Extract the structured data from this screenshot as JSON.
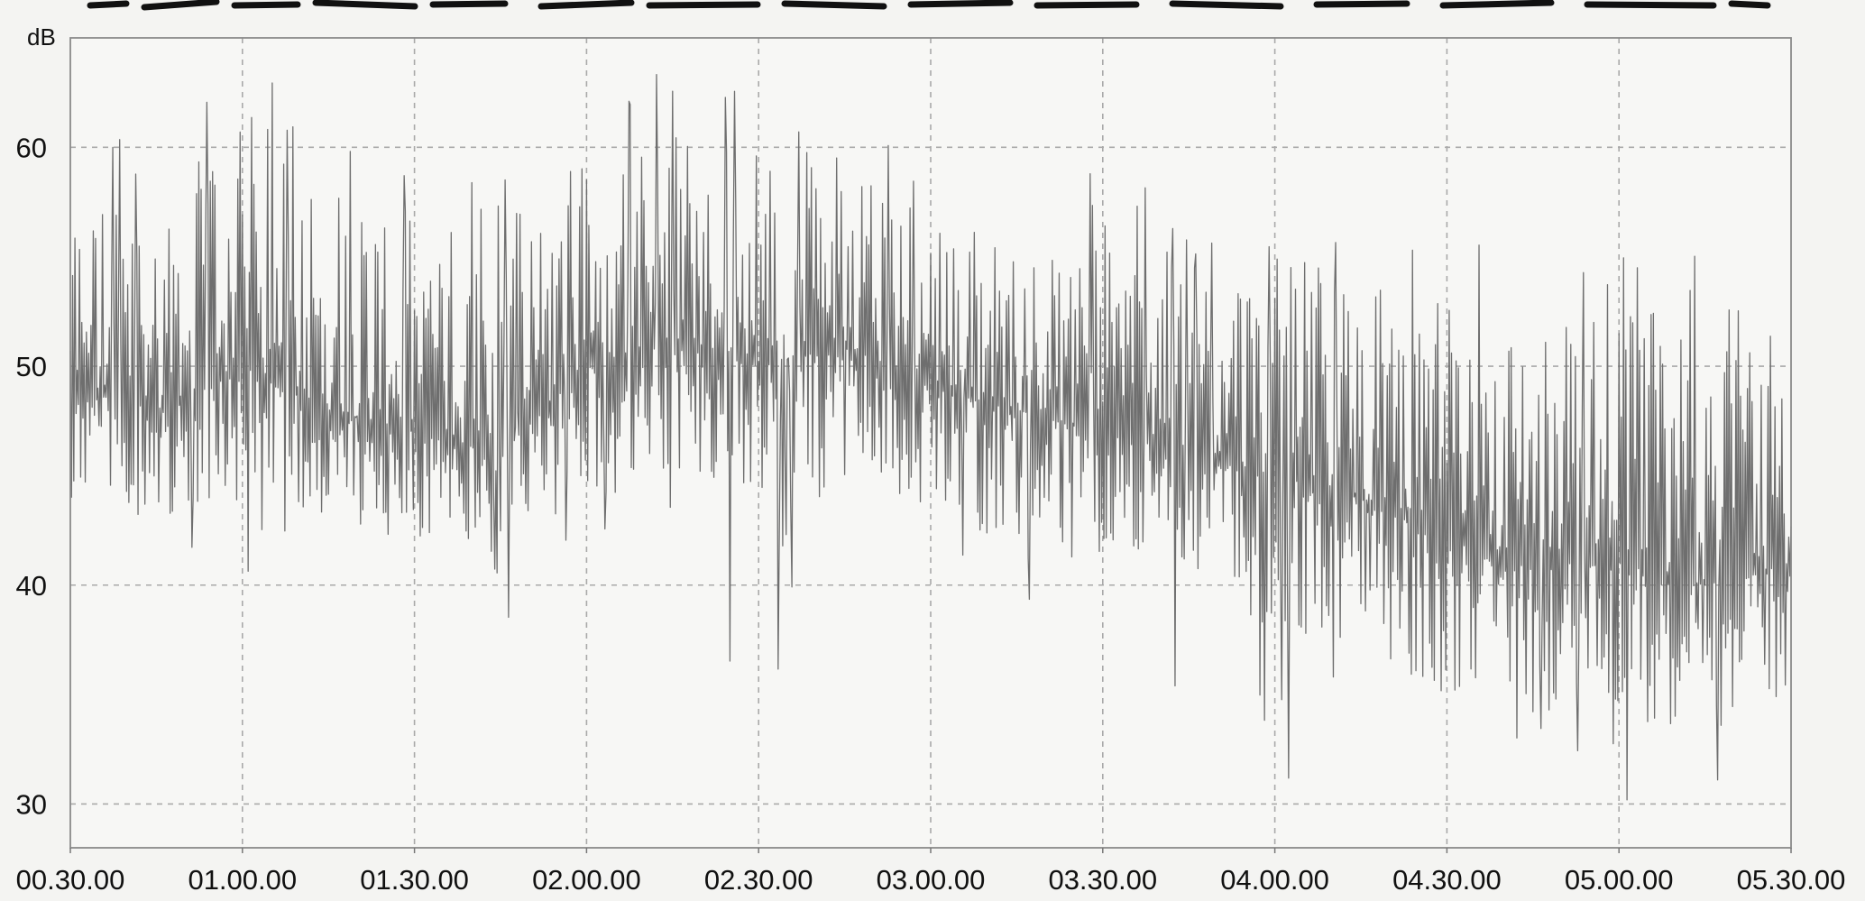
{
  "chart_data": {
    "type": "line",
    "title": "",
    "ylabel": "dB",
    "xlabel": "",
    "ylim": [
      28,
      65
    ],
    "xlim": [
      "00.30.00",
      "05.30.00"
    ],
    "grid": true,
    "y_ticks": [
      30,
      40,
      50,
      60
    ],
    "x_ticks": [
      "00.30.00",
      "01.00.00",
      "01.30.00",
      "02.00.00",
      "02.30.00",
      "03.00.00",
      "03.30.00",
      "04.00.00",
      "04.30.00",
      "05.00.00",
      "05.30.00"
    ],
    "series": [
      {
        "color": "#6e6e6e",
        "x": [
          "00.30.00",
          "00.45.00",
          "01.00.00",
          "01.15.00",
          "01.30.00",
          "01.45.00",
          "02.00.00",
          "02.15.00",
          "02.30.00",
          "02.45.00",
          "03.00.00",
          "03.15.00",
          "03.30.00",
          "03.45.00",
          "04.00.00",
          "04.15.00",
          "04.30.00",
          "04.45.00",
          "05.00.00",
          "05.15.00",
          "05.30.00"
        ],
        "center": [
          49,
          48,
          50,
          48,
          47,
          46,
          50,
          51,
          50,
          51,
          49,
          48,
          47,
          46,
          45,
          44,
          42,
          41,
          41,
          40,
          41
        ],
        "low": [
          44,
          43,
          44,
          43,
          42,
          41,
          44,
          44,
          44,
          44,
          43,
          42,
          41,
          40,
          38,
          37,
          35,
          34,
          34,
          33,
          35
        ],
        "high": [
          58,
          57,
          62,
          59,
          57,
          56,
          59,
          61,
          60,
          60,
          58,
          55,
          56,
          55,
          55,
          54,
          53,
          52,
          53,
          53,
          52
        ],
        "peak_max": [
          62,
          62,
          64,
          62,
          62,
          60,
          63,
          64,
          64,
          64,
          61,
          60,
          61,
          56,
          56,
          56,
          56,
          56,
          56,
          58,
          58
        ],
        "trough_min": [
          41,
          41,
          40,
          40,
          38,
          37,
          38,
          38,
          35,
          38,
          38,
          37,
          36,
          34,
          31,
          32,
          28,
          28,
          29,
          28,
          33
        ]
      }
    ]
  }
}
